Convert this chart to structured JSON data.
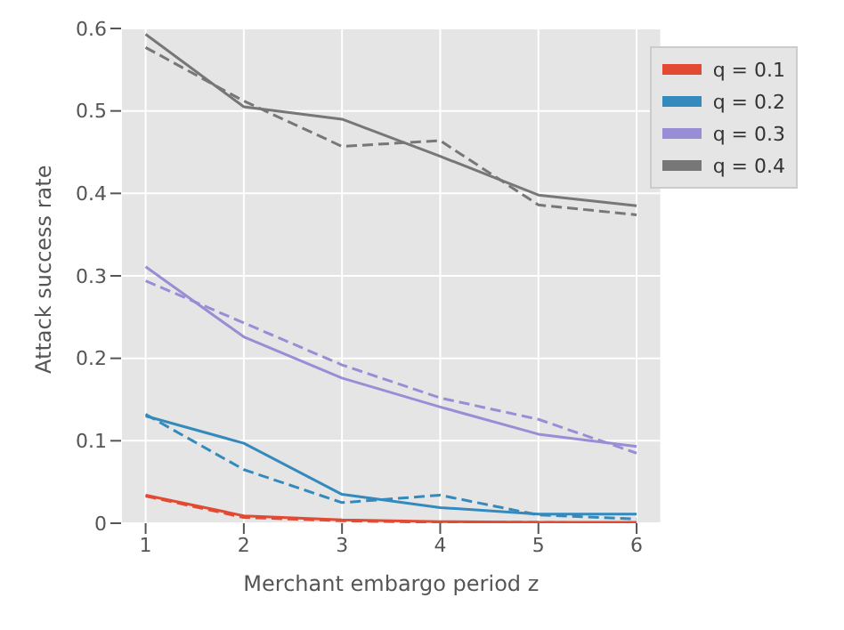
{
  "chart_data": {
    "type": "line",
    "xlabel": "Merchant embargo period z",
    "ylabel": "Attack success rate",
    "x": [
      1,
      2,
      3,
      4,
      5,
      6
    ],
    "xlim": [
      0.75,
      6.25
    ],
    "xticks": [
      1,
      2,
      3,
      4,
      5,
      6
    ],
    "ylim": [
      0,
      0.6
    ],
    "yticks": [
      0,
      0.1,
      0.2,
      0.3,
      0.4,
      0.5,
      0.6
    ],
    "grid": true,
    "legend": "top right",
    "marker": "none",
    "series": [
      {
        "name": "q = 0.1",
        "color": "#e24a33",
        "line_style": "solid",
        "values": [
          0.034,
          0.009,
          0.004,
          0.002,
          0.001,
          0.001
        ]
      },
      {
        "name": "q = 0.2",
        "color": "#348abd",
        "line_style": "solid",
        "values": [
          0.13,
          0.097,
          0.035,
          0.019,
          0.011,
          0.011
        ]
      },
      {
        "name": "q = 0.3",
        "color": "#988ed5",
        "line_style": "solid",
        "values": [
          0.311,
          0.226,
          0.176,
          0.141,
          0.108,
          0.093
        ]
      },
      {
        "name": "q = 0.4",
        "color": "#777777",
        "line_style": "solid",
        "values": [
          0.593,
          0.505,
          0.49,
          0.445,
          0.398,
          0.385
        ]
      },
      {
        "color": "#e24a33",
        "line_style": "dashed",
        "values": [
          0.033,
          0.007,
          0.003,
          0.001,
          0.001,
          0
        ]
      },
      {
        "color": "#348abd",
        "line_style": "dashed",
        "values": [
          0.132,
          0.065,
          0.025,
          0.034,
          0.01,
          0.005
        ]
      },
      {
        "color": "#988ed5",
        "line_style": "dashed",
        "values": [
          0.294,
          0.243,
          0.192,
          0.152,
          0.126,
          0.085
        ]
      },
      {
        "color": "#777777",
        "line_style": "dashed",
        "values": [
          0.577,
          0.512,
          0.457,
          0.464,
          0.386,
          0.374
        ]
      }
    ]
  }
}
